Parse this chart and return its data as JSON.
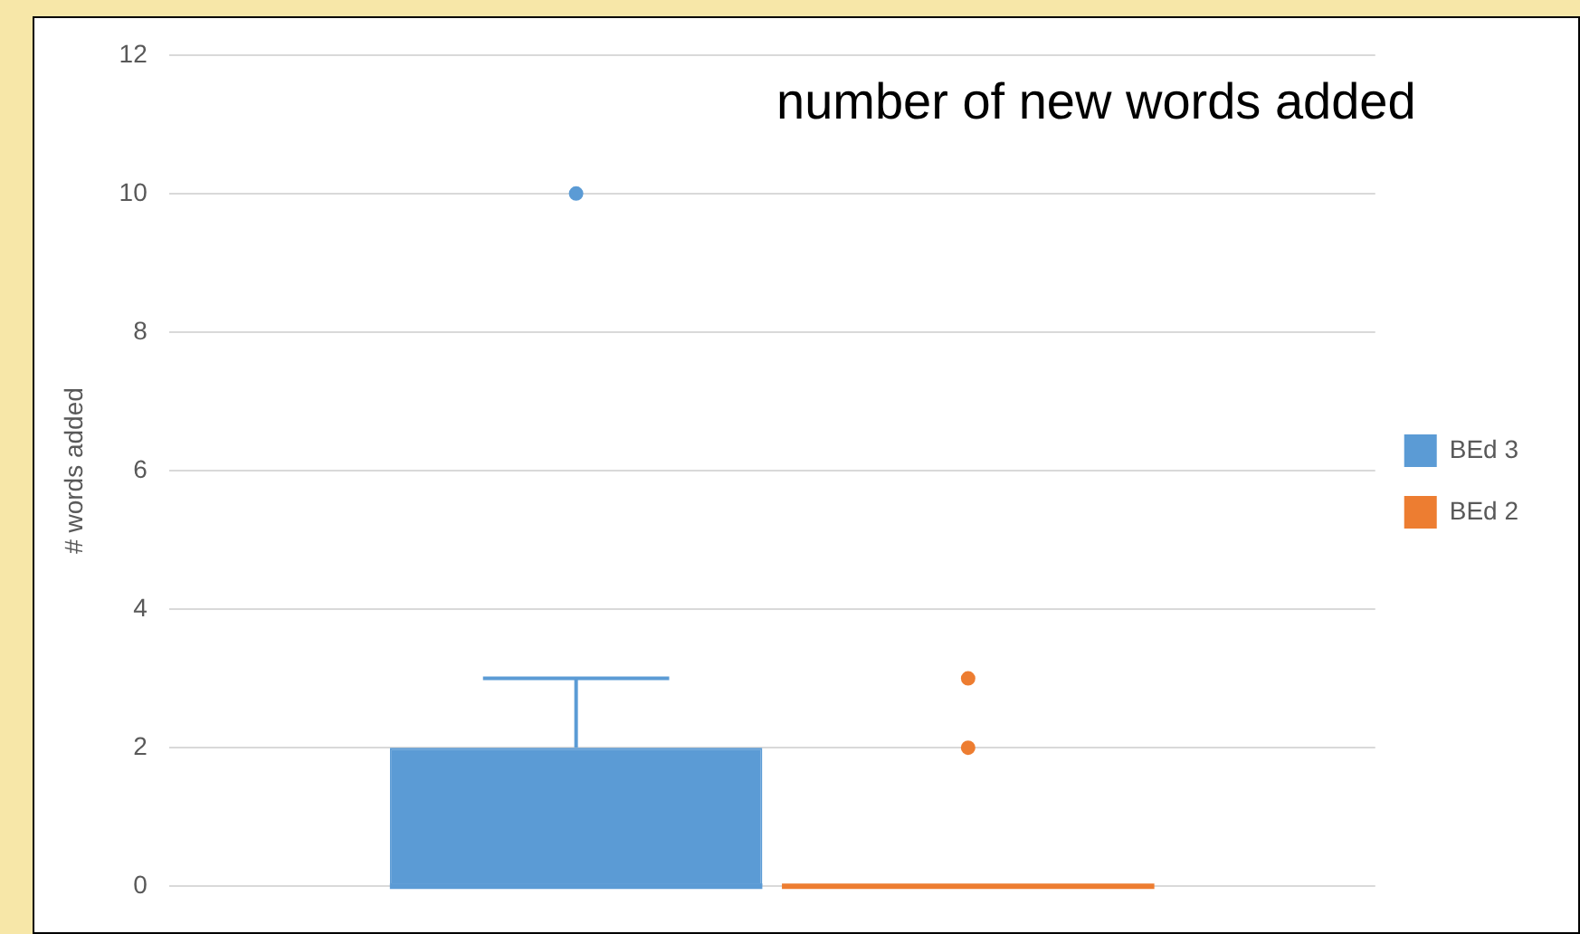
{
  "chart_data": {
    "type": "box",
    "title": "number of new words added",
    "ylabel": "# words added",
    "categories": [
      null
    ],
    "series": [
      {
        "name": "BEd 3",
        "color": "#5b9bd5",
        "boxes": [
          {
            "low": 0,
            "q1": 0,
            "median": 0,
            "q3": 2,
            "high": 3,
            "outliers": [
              10
            ]
          }
        ]
      },
      {
        "name": "BEd 2",
        "color": "#ed7d31",
        "boxes": [
          {
            "low": 0,
            "q1": 0,
            "median": 0,
            "q3": 0,
            "high": 0,
            "outliers": [
              2,
              3
            ]
          }
        ]
      }
    ],
    "ylim": [
      0,
      12
    ],
    "yticks": [
      0,
      2,
      4,
      6,
      8,
      10,
      12
    ],
    "grid": "y",
    "legend": "right",
    "tick_labels": "y"
  }
}
